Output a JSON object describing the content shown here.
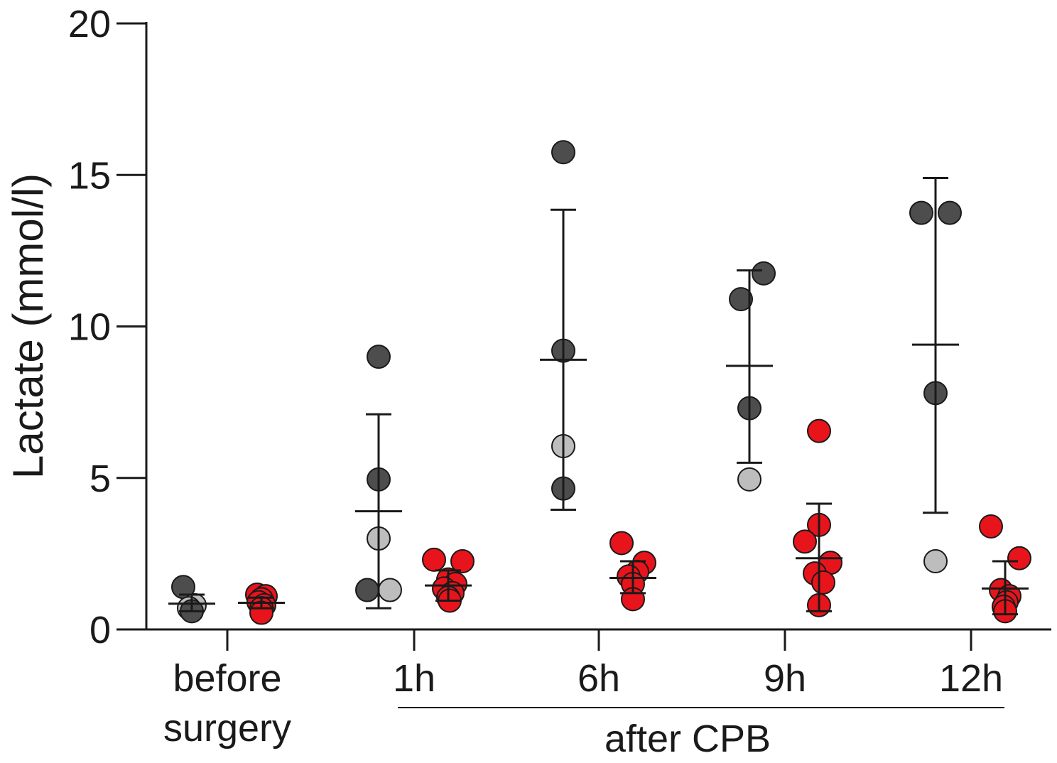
{
  "chart_data": {
    "type": "scatter",
    "ylabel": "Lactate (mmol/l)",
    "ylim": [
      0,
      20
    ],
    "yticks": [
      "0",
      "5",
      "10",
      "15",
      "20"
    ],
    "categories": [
      {
        "lines": [
          "before",
          "surgery"
        ]
      },
      {
        "lines": [
          "1h"
        ]
      },
      {
        "lines": [
          "6h"
        ]
      },
      {
        "lines": [
          "9h"
        ]
      },
      {
        "lines": [
          "12h"
        ]
      }
    ],
    "group_label": "after CPB",
    "colors": {
      "dark": "#4d4d4d",
      "light": "#bdbdbd",
      "red": "#e8141b",
      "axis": "#1a1a1a"
    },
    "groups": [
      {
        "category": 0,
        "side": "left",
        "mean": 0.85,
        "sd_low": 0.6,
        "sd_high": 1.15,
        "points": [
          {
            "y": 1.4,
            "c": "dark",
            "j": -0.6
          },
          {
            "y": 0.8,
            "c": "light",
            "j": 0.2
          },
          {
            "y": 0.7,
            "c": "light",
            "j": -0.2
          },
          {
            "y": 0.6,
            "c": "dark",
            "j": 0.0
          }
        ]
      },
      {
        "category": 0,
        "side": "right",
        "mean": 0.88,
        "sd_low": 0.7,
        "sd_high": 1.05,
        "points": [
          {
            "y": 1.15,
            "c": "red",
            "j": -0.3
          },
          {
            "y": 1.1,
            "c": "red",
            "j": 0.3
          },
          {
            "y": 1.0,
            "c": "red",
            "j": 0.0
          },
          {
            "y": 0.9,
            "c": "red",
            "j": -0.2
          },
          {
            "y": 0.8,
            "c": "red",
            "j": 0.2
          },
          {
            "y": 0.7,
            "c": "red",
            "j": 0.0
          },
          {
            "y": 0.55,
            "c": "red",
            "j": 0.0
          }
        ]
      },
      {
        "category": 1,
        "side": "left",
        "mean": 3.9,
        "sd_low": 0.7,
        "sd_high": 7.1,
        "points": [
          {
            "y": 9.0,
            "c": "dark",
            "j": 0.0
          },
          {
            "y": 4.95,
            "c": "dark",
            "j": 0.0
          },
          {
            "y": 3.0,
            "c": "light",
            "j": 0.0
          },
          {
            "y": 1.3,
            "c": "dark",
            "j": -0.8
          },
          {
            "y": 1.3,
            "c": "light",
            "j": 0.8
          }
        ]
      },
      {
        "category": 1,
        "side": "right",
        "mean": 1.45,
        "sd_low": 0.95,
        "sd_high": 1.95,
        "points": [
          {
            "y": 2.3,
            "c": "red",
            "j": -1.0
          },
          {
            "y": 2.25,
            "c": "red",
            "j": 1.0
          },
          {
            "y": 1.65,
            "c": "red",
            "j": 0.0
          },
          {
            "y": 1.5,
            "c": "red",
            "j": 0.5
          },
          {
            "y": 1.35,
            "c": "red",
            "j": -0.3
          },
          {
            "y": 1.2,
            "c": "red",
            "j": 0.3
          },
          {
            "y": 1.05,
            "c": "red",
            "j": 0.0
          },
          {
            "y": 0.95,
            "c": "red",
            "j": 0.1
          }
        ]
      },
      {
        "category": 2,
        "side": "left",
        "mean": 8.9,
        "sd_low": 3.95,
        "sd_high": 13.85,
        "points": [
          {
            "y": 15.75,
            "c": "dark",
            "j": 0.0
          },
          {
            "y": 9.2,
            "c": "dark",
            "j": 0.0
          },
          {
            "y": 6.05,
            "c": "light",
            "j": 0.0
          },
          {
            "y": 4.65,
            "c": "dark",
            "j": 0.0
          }
        ]
      },
      {
        "category": 2,
        "side": "right",
        "mean": 1.7,
        "sd_low": 1.2,
        "sd_high": 2.25,
        "points": [
          {
            "y": 2.85,
            "c": "red",
            "j": -0.8
          },
          {
            "y": 2.2,
            "c": "red",
            "j": 0.8
          },
          {
            "y": 1.9,
            "c": "red",
            "j": 0.3
          },
          {
            "y": 1.75,
            "c": "red",
            "j": -0.3
          },
          {
            "y": 1.5,
            "c": "red",
            "j": 0.0
          },
          {
            "y": 1.0,
            "c": "red",
            "j": 0.0
          }
        ]
      },
      {
        "category": 3,
        "side": "left",
        "mean": 8.7,
        "sd_low": 5.5,
        "sd_high": 11.85,
        "points": [
          {
            "y": 11.75,
            "c": "dark",
            "j": 1.0
          },
          {
            "y": 10.9,
            "c": "dark",
            "j": -0.6
          },
          {
            "y": 7.3,
            "c": "dark",
            "j": 0.0
          },
          {
            "y": 4.95,
            "c": "light",
            "j": 0.0
          }
        ]
      },
      {
        "category": 3,
        "side": "right",
        "mean": 2.35,
        "sd_low": 0.6,
        "sd_high": 4.15,
        "points": [
          {
            "y": 6.55,
            "c": "red",
            "j": 0.0
          },
          {
            "y": 3.45,
            "c": "red",
            "j": 0.0
          },
          {
            "y": 2.9,
            "c": "red",
            "j": -1.0
          },
          {
            "y": 2.2,
            "c": "red",
            "j": 0.8
          },
          {
            "y": 1.85,
            "c": "red",
            "j": -0.3
          },
          {
            "y": 1.55,
            "c": "red",
            "j": 0.3
          },
          {
            "y": 0.8,
            "c": "red",
            "j": 0.0
          }
        ]
      },
      {
        "category": 4,
        "side": "left",
        "mean": 9.4,
        "sd_low": 3.85,
        "sd_high": 14.9,
        "points": [
          {
            "y": 13.75,
            "c": "dark",
            "j": -1.0
          },
          {
            "y": 13.75,
            "c": "dark",
            "j": 1.0
          },
          {
            "y": 7.8,
            "c": "dark",
            "j": 0.0
          },
          {
            "y": 2.25,
            "c": "light",
            "j": 0.0
          }
        ]
      },
      {
        "category": 4,
        "side": "right",
        "mean": 1.35,
        "sd_low": 0.5,
        "sd_high": 2.25,
        "points": [
          {
            "y": 3.4,
            "c": "red",
            "j": -1.0
          },
          {
            "y": 2.35,
            "c": "red",
            "j": 1.0
          },
          {
            "y": 1.3,
            "c": "red",
            "j": -0.3
          },
          {
            "y": 1.1,
            "c": "red",
            "j": 0.3
          },
          {
            "y": 0.9,
            "c": "red",
            "j": 0.1
          },
          {
            "y": 0.75,
            "c": "red",
            "j": -0.1
          },
          {
            "y": 0.6,
            "c": "red",
            "j": 0.0
          }
        ]
      }
    ]
  }
}
